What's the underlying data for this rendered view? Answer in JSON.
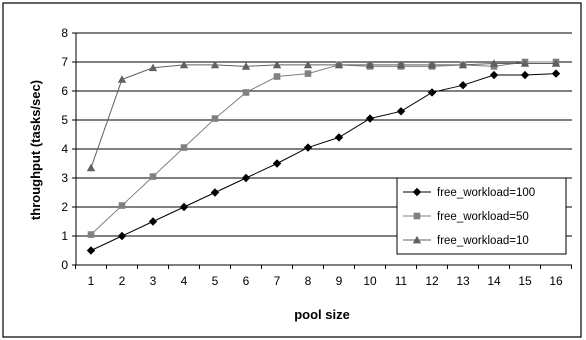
{
  "chart_data": {
    "type": "line",
    "title": "",
    "xlabel": "pool size",
    "ylabel": "throughput (tasks/sec)",
    "x": [
      1,
      2,
      3,
      4,
      5,
      6,
      7,
      8,
      9,
      10,
      11,
      12,
      13,
      14,
      15,
      16
    ],
    "x_tick_labels": [
      "1",
      "2",
      "3",
      "4",
      "5",
      "6",
      "7",
      "8",
      "9",
      "10",
      "11",
      "12",
      "13",
      "14",
      "15",
      "16"
    ],
    "ylim": [
      0,
      8
    ],
    "y_ticks": [
      0,
      1,
      2,
      3,
      4,
      5,
      6,
      7,
      8
    ],
    "y_tick_labels": [
      "0",
      "1",
      "2",
      "3",
      "4",
      "5",
      "6",
      "7",
      "8"
    ],
    "grid": "horizontal",
    "legend_position": "bottom-right",
    "series": [
      {
        "name": "free_workload=100",
        "marker": "diamond",
        "color": "#000000",
        "values": [
          0.5,
          1.0,
          1.5,
          2.0,
          2.5,
          3.0,
          3.5,
          4.05,
          4.4,
          5.05,
          5.3,
          5.95,
          6.2,
          6.55,
          6.55,
          6.6
        ]
      },
      {
        "name": "free_workload=50",
        "marker": "square",
        "color": "#808080",
        "values": [
          1.05,
          2.05,
          3.05,
          4.05,
          5.05,
          5.95,
          6.5,
          6.6,
          6.9,
          6.85,
          6.85,
          6.85,
          6.9,
          6.85,
          7.0,
          7.0
        ]
      },
      {
        "name": "free_workload=10",
        "marker": "triangle",
        "color": "#606060",
        "values": [
          3.35,
          6.4,
          6.8,
          6.9,
          6.9,
          6.85,
          6.9,
          6.9,
          6.9,
          6.9,
          6.9,
          6.9,
          6.9,
          6.95,
          6.95,
          6.95
        ]
      }
    ]
  }
}
